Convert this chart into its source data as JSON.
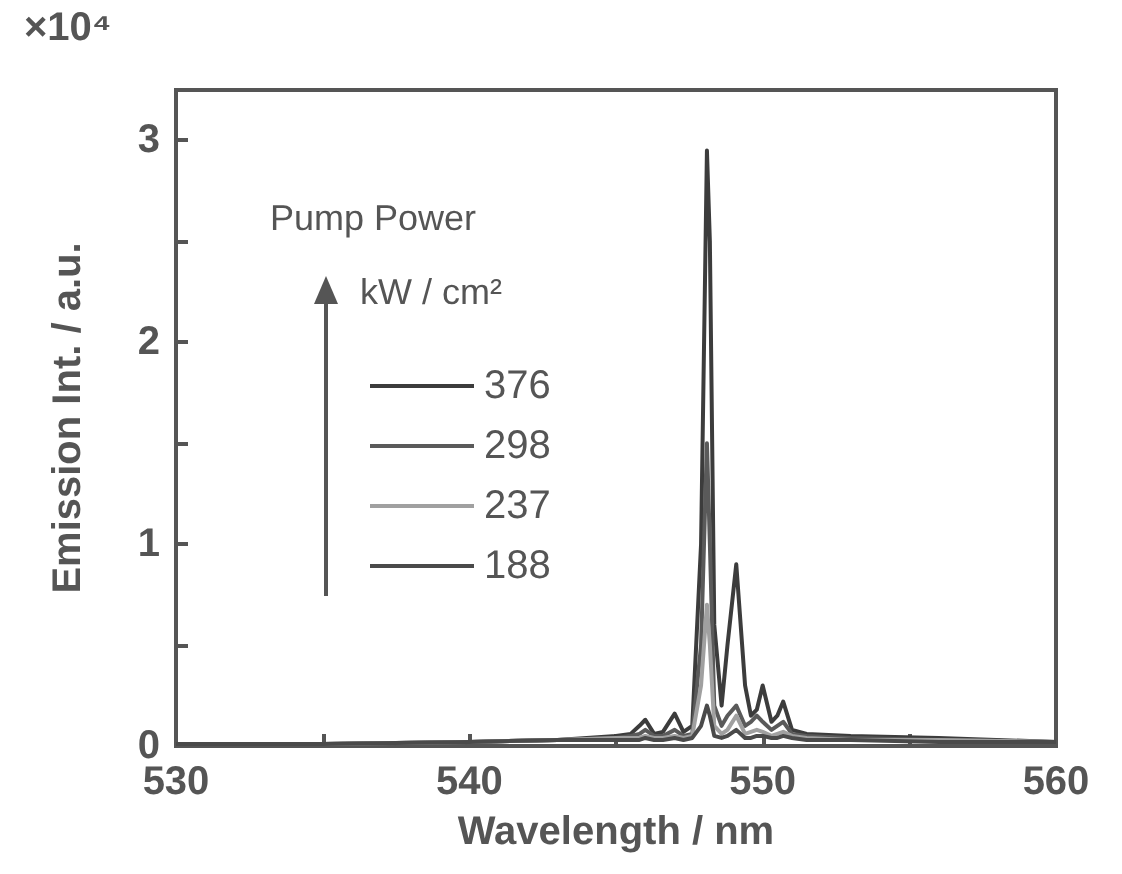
{
  "chart_data": {
    "type": "line",
    "xlabel": "Wavelength / nm",
    "ylabel": "Emission Int. / a.u.",
    "legend_title": "Pump Power\nkW / cm²",
    "annotations": [
      "×10⁴"
    ],
    "x": [
      530,
      535,
      540,
      543,
      545,
      545.5,
      545.8,
      546.0,
      546.3,
      546.6,
      547.0,
      547.3,
      547.6,
      547.9,
      548.1,
      548.2,
      548.35,
      548.6,
      548.8,
      549.1,
      549.4,
      549.6,
      549.8,
      550.0,
      550.3,
      550.5,
      550.7,
      551.0,
      551.5,
      553,
      556,
      560
    ],
    "series": [
      {
        "name": "376",
        "color": "#3c3c3c",
        "values": [
          0.01,
          0.01,
          0.02,
          0.03,
          0.05,
          0.06,
          0.1,
          0.13,
          0.06,
          0.07,
          0.16,
          0.07,
          0.1,
          1.0,
          2.95,
          2.5,
          0.6,
          0.2,
          0.5,
          0.9,
          0.3,
          0.15,
          0.18,
          0.3,
          0.12,
          0.15,
          0.22,
          0.08,
          0.06,
          0.05,
          0.04,
          0.02
        ]
      },
      {
        "name": "298",
        "color": "#5a5a5a",
        "values": [
          0.01,
          0.01,
          0.02,
          0.03,
          0.04,
          0.05,
          0.06,
          0.08,
          0.05,
          0.05,
          0.08,
          0.05,
          0.06,
          0.5,
          1.5,
          1.0,
          0.2,
          0.1,
          0.15,
          0.2,
          0.1,
          0.12,
          0.15,
          0.12,
          0.08,
          0.1,
          0.12,
          0.06,
          0.05,
          0.04,
          0.03,
          0.02
        ]
      },
      {
        "name": "237",
        "color": "#a0a0a0",
        "values": [
          0.01,
          0.01,
          0.02,
          0.03,
          0.04,
          0.04,
          0.04,
          0.05,
          0.04,
          0.04,
          0.05,
          0.04,
          0.05,
          0.3,
          0.7,
          0.5,
          0.1,
          0.06,
          0.08,
          0.15,
          0.06,
          0.07,
          0.08,
          0.07,
          0.05,
          0.06,
          0.07,
          0.05,
          0.04,
          0.03,
          0.03,
          0.02
        ]
      },
      {
        "name": "188",
        "color": "#4a4a4a",
        "values": [
          0.01,
          0.01,
          0.02,
          0.03,
          0.03,
          0.03,
          0.03,
          0.04,
          0.03,
          0.03,
          0.04,
          0.03,
          0.04,
          0.1,
          0.2,
          0.15,
          0.05,
          0.04,
          0.05,
          0.08,
          0.04,
          0.04,
          0.05,
          0.05,
          0.04,
          0.04,
          0.05,
          0.04,
          0.03,
          0.03,
          0.02,
          0.02
        ]
      }
    ],
    "xlim": [
      530,
      560
    ],
    "xticks": [
      530,
      {
        "value": 535,
        "label": null
      },
      540,
      {
        "value": 545,
        "label": null
      },
      550,
      {
        "value": 555,
        "label": null
      },
      560
    ],
    "ylim": [
      0,
      3.25
    ],
    "yticks": [
      0,
      {
        "value": 0.5,
        "label": null
      },
      1,
      {
        "value": 1.5,
        "label": null
      },
      2,
      {
        "value": 2.5,
        "label": null
      },
      3
    ],
    "legend": "left",
    "grid": false,
    "marker": "none",
    "line_style": "solid"
  }
}
